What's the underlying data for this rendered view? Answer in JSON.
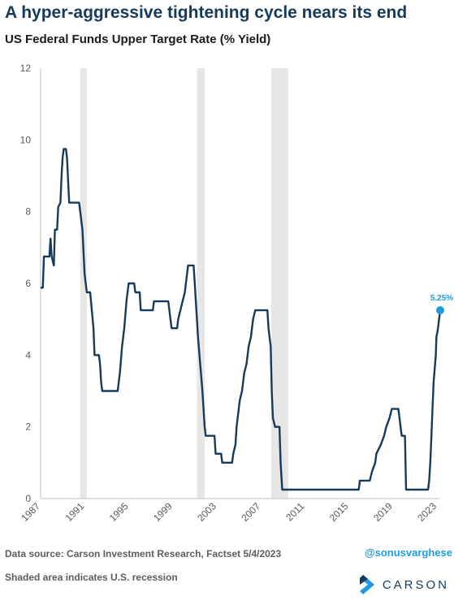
{
  "title": "A hyper-aggressive tightening cycle nears its end",
  "subtitle": "US Federal Funds Upper Target Rate (% Yield)",
  "footer": {
    "source": "Data source: Carson Investment Research, Factset   5/4/2023",
    "handle": "@sonusvarghese",
    "note": "Shaded area indicates U.S. recession",
    "logo_text": "CARSON"
  },
  "colors": {
    "line": "#163a5a",
    "highlight": "#1e9be0",
    "recession": "#e6e6e6",
    "title": "#163a5a"
  },
  "chart_data": {
    "type": "line",
    "title": "US Federal Funds Upper Target Rate (% Yield)",
    "xlabel": "",
    "ylabel": "",
    "xlim": [
      1987.0,
      2023.3
    ],
    "ylim": [
      0,
      12
    ],
    "y_ticks": [
      0,
      2,
      4,
      6,
      8,
      10,
      12
    ],
    "x_ticks": [
      "1987",
      "1991",
      "1995",
      "1999",
      "2003",
      "2007",
      "2011",
      "2015",
      "2019",
      "2023"
    ],
    "grid": false,
    "recessions": [
      [
        1990.6,
        1991.2
      ],
      [
        2001.2,
        2001.9
      ],
      [
        2007.95,
        2009.5
      ]
    ],
    "annotation": {
      "x": 2023.3,
      "y": 5.25,
      "label": "5.25%"
    },
    "series": [
      {
        "points": [
          [
            1987.0,
            5.88
          ],
          [
            1987.2,
            5.88
          ],
          [
            1987.3,
            6.75
          ],
          [
            1987.8,
            6.75
          ],
          [
            1987.9,
            7.25
          ],
          [
            1988.0,
            6.75
          ],
          [
            1988.2,
            6.5
          ],
          [
            1988.3,
            7.5
          ],
          [
            1988.5,
            7.5
          ],
          [
            1988.6,
            8.13
          ],
          [
            1988.8,
            8.25
          ],
          [
            1988.9,
            9.0
          ],
          [
            1989.0,
            9.5
          ],
          [
            1989.1,
            9.75
          ],
          [
            1989.3,
            9.75
          ],
          [
            1989.4,
            9.5
          ],
          [
            1989.6,
            8.25
          ],
          [
            1990.5,
            8.25
          ],
          [
            1990.6,
            8.0
          ],
          [
            1990.8,
            7.5
          ],
          [
            1991.0,
            6.25
          ],
          [
            1991.2,
            5.75
          ],
          [
            1991.5,
            5.75
          ],
          [
            1991.8,
            4.75
          ],
          [
            1991.9,
            4.0
          ],
          [
            1992.3,
            4.0
          ],
          [
            1992.4,
            3.75
          ],
          [
            1992.5,
            3.25
          ],
          [
            1992.6,
            3.0
          ],
          [
            1994.0,
            3.0
          ],
          [
            1994.2,
            3.5
          ],
          [
            1994.4,
            4.25
          ],
          [
            1994.6,
            4.75
          ],
          [
            1994.8,
            5.5
          ],
          [
            1995.0,
            6.0
          ],
          [
            1995.5,
            6.0
          ],
          [
            1995.6,
            5.75
          ],
          [
            1996.0,
            5.75
          ],
          [
            1996.1,
            5.25
          ],
          [
            1997.2,
            5.25
          ],
          [
            1997.3,
            5.5
          ],
          [
            1998.6,
            5.5
          ],
          [
            1998.8,
            5.0
          ],
          [
            1998.9,
            4.75
          ],
          [
            1999.4,
            4.75
          ],
          [
            1999.5,
            5.0
          ],
          [
            1999.7,
            5.25
          ],
          [
            1999.9,
            5.5
          ],
          [
            2000.1,
            5.75
          ],
          [
            2000.2,
            6.0
          ],
          [
            2000.4,
            6.5
          ],
          [
            2000.9,
            6.5
          ],
          [
            2001.0,
            6.0
          ],
          [
            2001.1,
            5.5
          ],
          [
            2001.2,
            5.0
          ],
          [
            2001.3,
            4.5
          ],
          [
            2001.5,
            3.75
          ],
          [
            2001.7,
            3.0
          ],
          [
            2001.8,
            2.5
          ],
          [
            2001.9,
            2.0
          ],
          [
            2002.0,
            1.75
          ],
          [
            2002.8,
            1.75
          ],
          [
            2002.9,
            1.25
          ],
          [
            2003.4,
            1.25
          ],
          [
            2003.5,
            1.0
          ],
          [
            2004.4,
            1.0
          ],
          [
            2004.5,
            1.25
          ],
          [
            2004.7,
            1.5
          ],
          [
            2004.8,
            2.0
          ],
          [
            2004.9,
            2.25
          ],
          [
            2005.1,
            2.75
          ],
          [
            2005.3,
            3.0
          ],
          [
            2005.5,
            3.5
          ],
          [
            2005.7,
            3.75
          ],
          [
            2005.9,
            4.25
          ],
          [
            2006.1,
            4.5
          ],
          [
            2006.3,
            5.0
          ],
          [
            2006.5,
            5.25
          ],
          [
            2007.6,
            5.25
          ],
          [
            2007.7,
            4.75
          ],
          [
            2007.8,
            4.5
          ],
          [
            2007.9,
            4.25
          ],
          [
            2008.0,
            3.0
          ],
          [
            2008.1,
            2.25
          ],
          [
            2008.3,
            2.0
          ],
          [
            2008.7,
            2.0
          ],
          [
            2008.8,
            1.0
          ],
          [
            2008.95,
            0.25
          ],
          [
            2015.9,
            0.25
          ],
          [
            2016.0,
            0.5
          ],
          [
            2016.9,
            0.5
          ],
          [
            2017.1,
            0.75
          ],
          [
            2017.4,
            1.0
          ],
          [
            2017.5,
            1.25
          ],
          [
            2017.9,
            1.5
          ],
          [
            2018.2,
            1.75
          ],
          [
            2018.4,
            2.0
          ],
          [
            2018.7,
            2.25
          ],
          [
            2018.9,
            2.5
          ],
          [
            2019.5,
            2.5
          ],
          [
            2019.6,
            2.25
          ],
          [
            2019.7,
            2.0
          ],
          [
            2019.8,
            1.75
          ],
          [
            2020.1,
            1.75
          ],
          [
            2020.2,
            0.25
          ],
          [
            2022.2,
            0.25
          ],
          [
            2022.3,
            0.5
          ],
          [
            2022.4,
            1.0
          ],
          [
            2022.5,
            1.75
          ],
          [
            2022.6,
            2.5
          ],
          [
            2022.7,
            3.25
          ],
          [
            2022.9,
            4.0
          ],
          [
            2022.95,
            4.5
          ],
          [
            2023.1,
            4.75
          ],
          [
            2023.2,
            5.0
          ],
          [
            2023.3,
            5.25
          ]
        ]
      }
    ]
  }
}
